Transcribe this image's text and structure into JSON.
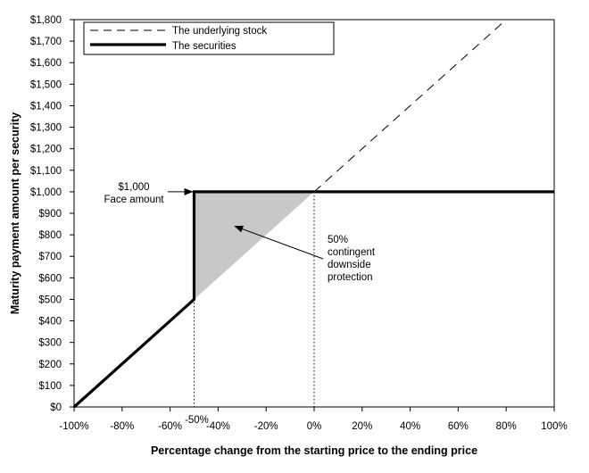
{
  "chart_data": {
    "type": "line",
    "xlabel": "Percentage change from the starting price to the ending price",
    "ylabel": "Maturity payment amount per security",
    "xlim": [
      -100,
      100
    ],
    "ylim": [
      0,
      1800
    ],
    "x_ticks": [
      -100,
      -80,
      -60,
      -40,
      -20,
      0,
      20,
      40,
      60,
      80,
      100
    ],
    "x_tick_labels": [
      "-100%",
      "-80%",
      "-60%",
      "-40%",
      "-20%",
      "0%",
      "20%",
      "40%",
      "60%",
      "80%",
      "100%"
    ],
    "y_ticks": [
      0,
      100,
      200,
      300,
      400,
      500,
      600,
      700,
      800,
      900,
      1000,
      1100,
      1200,
      1300,
      1400,
      1500,
      1600,
      1700,
      1800
    ],
    "y_tick_labels": [
      "$0",
      "$100",
      "$200",
      "$300",
      "$400",
      "$500",
      "$600",
      "$700",
      "$800",
      "$900",
      "$1,000",
      "$1,100",
      "$1,200",
      "$1,300",
      "$1,400",
      "$1,500",
      "$1,600",
      "$1,700",
      "$1,800"
    ],
    "grid": false,
    "legend_position": "top-left",
    "series": [
      {
        "name": "The underlying stock",
        "style": "dashed",
        "color": "#000000",
        "x": [
          0,
          80
        ],
        "y": [
          1000,
          1800
        ]
      },
      {
        "name": "The securities",
        "style": "solid-thick",
        "color": "#000000",
        "x": [
          -100,
          -50,
          -50,
          0,
          100
        ],
        "y": [
          0,
          500,
          1000,
          1000,
          1000
        ]
      }
    ],
    "shaded_region": {
      "color": "#c8c8c8",
      "x": [
        -50,
        -50,
        0
      ],
      "y": [
        500,
        1000,
        1000
      ]
    },
    "reference_lines": [
      {
        "x": -50,
        "label": "-50%"
      },
      {
        "x": 0,
        "label": ""
      }
    ],
    "annotations": [
      {
        "lines": [
          "$1,000",
          "Face amount"
        ],
        "arrow_to": {
          "x": -50,
          "y": 1000
        }
      },
      {
        "lines": [
          "50%",
          "contingent",
          "downside",
          "protection"
        ],
        "arrow_to": {
          "x": -33,
          "y": 840
        }
      }
    ]
  }
}
